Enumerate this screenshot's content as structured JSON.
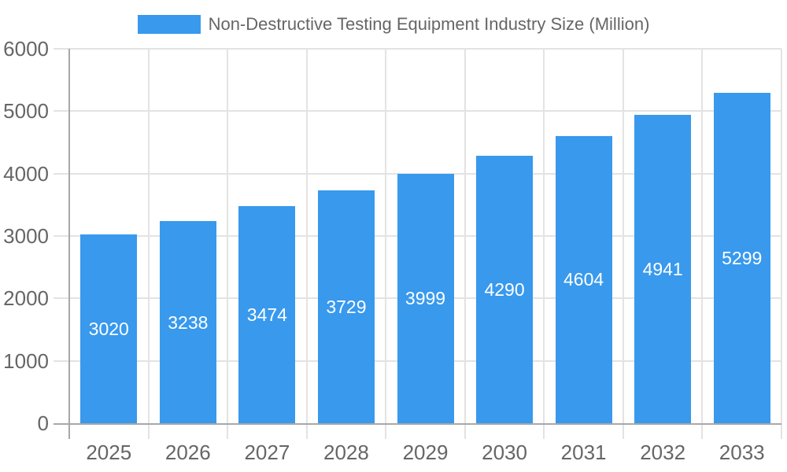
{
  "legend": {
    "label": "Non-Destructive Testing Equipment Industry Size (Million)"
  },
  "chart_data": {
    "type": "bar",
    "title": "Non-Destructive Testing Equipment Industry Size (Million)",
    "categories": [
      "2025",
      "2026",
      "2027",
      "2028",
      "2029",
      "2030",
      "2031",
      "2032",
      "2033"
    ],
    "values": [
      3020,
      3238,
      3474,
      3729,
      3999,
      4290,
      4604,
      4941,
      5299
    ],
    "xlabel": "",
    "ylabel": "",
    "ylim": [
      0,
      6000
    ],
    "ytick_step": 1000,
    "ytick_labels": [
      "0",
      "1000",
      "2000",
      "3000",
      "4000",
      "5000",
      "6000"
    ],
    "grid": true,
    "legend_position": "top",
    "value_labels_inside_bars": true,
    "colors": {
      "bar": "#3899ed",
      "value_label": "#ffffff",
      "grid": "#e3e3e3",
      "axis": "#a8a8a8",
      "tick_label": "#666666",
      "background": "#ffffff"
    }
  }
}
